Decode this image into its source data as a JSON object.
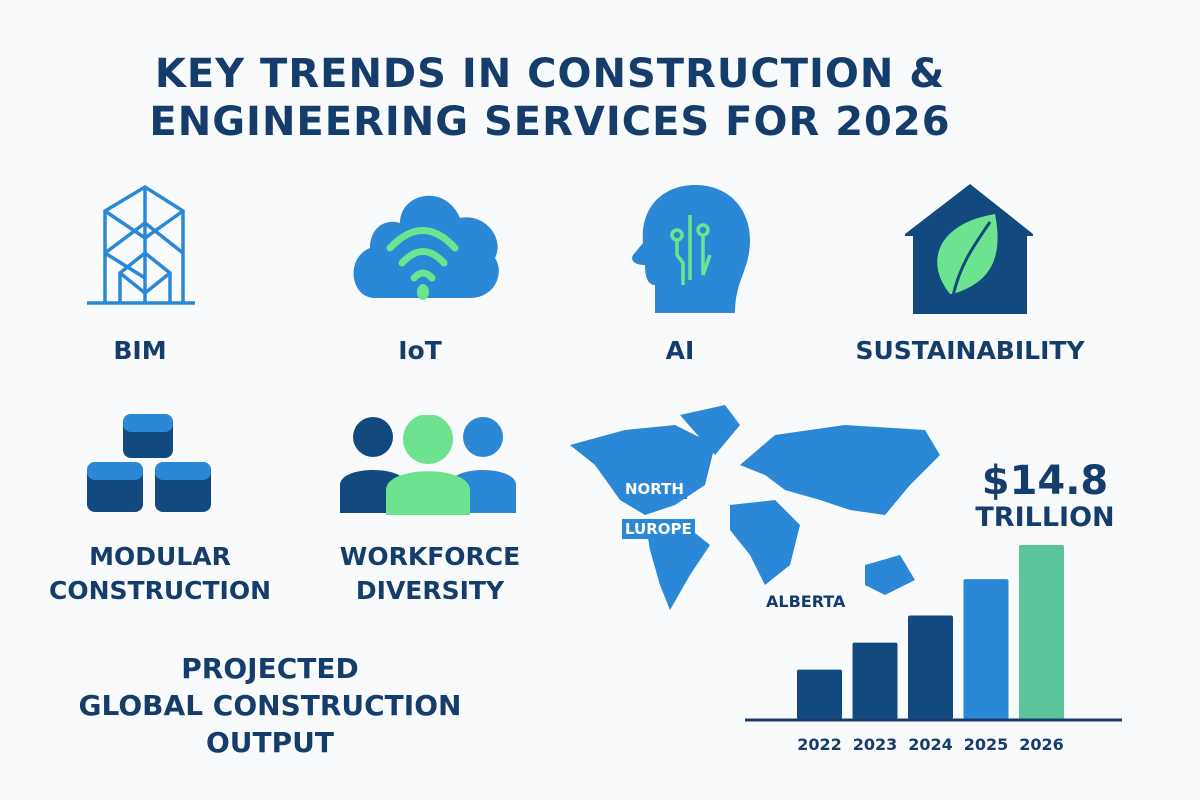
{
  "title": {
    "line1": "KEY TRENDS IN CONSTRUCTION &",
    "line2": "ENGINEERING SERVICES FOR 2026"
  },
  "trends": [
    {
      "label": "BIM",
      "icon": "building-wireframe-icon"
    },
    {
      "label": "IoT",
      "icon": "cloud-wifi-icon"
    },
    {
      "label": "AI",
      "icon": "head-circuit-icon"
    },
    {
      "label": "SUSTAINABILITY",
      "icon": "house-leaf-icon"
    },
    {
      "label_line1": "MODULAR",
      "label_line2": "CONSTRUCTION",
      "icon": "stacked-blocks-icon"
    },
    {
      "label_line1": "WORKFORCE",
      "label_line2": "DIVERSITY",
      "icon": "people-group-icon"
    }
  ],
  "map": {
    "labels": [
      "NORTH",
      "LUROPE",
      "ALBERTA"
    ]
  },
  "projection": {
    "line1": "PROJECTED",
    "line2": "GLOBAL CONSTRUCTION",
    "line3": "OUTPUT",
    "value": "$14.8",
    "unit": "TRILLION"
  },
  "colors": {
    "dark_navy": "#153d6b",
    "dark_blue": "#12497e",
    "blue": "#2a88d6",
    "green": "#5cc49a",
    "light_green": "#6ee38f"
  },
  "chart_data": {
    "type": "bar",
    "categories": [
      "2022",
      "2023",
      "2024",
      "2025",
      "2026"
    ],
    "values": [
      4.2,
      6.5,
      8.8,
      11.9,
      14.8
    ],
    "unit": "trillion USD",
    "title": "",
    "xlabel": "",
    "ylabel": "",
    "grid": false,
    "bar_colors": [
      "#12497e",
      "#12497e",
      "#12497e",
      "#2a88d6",
      "#5cc49a"
    ]
  }
}
